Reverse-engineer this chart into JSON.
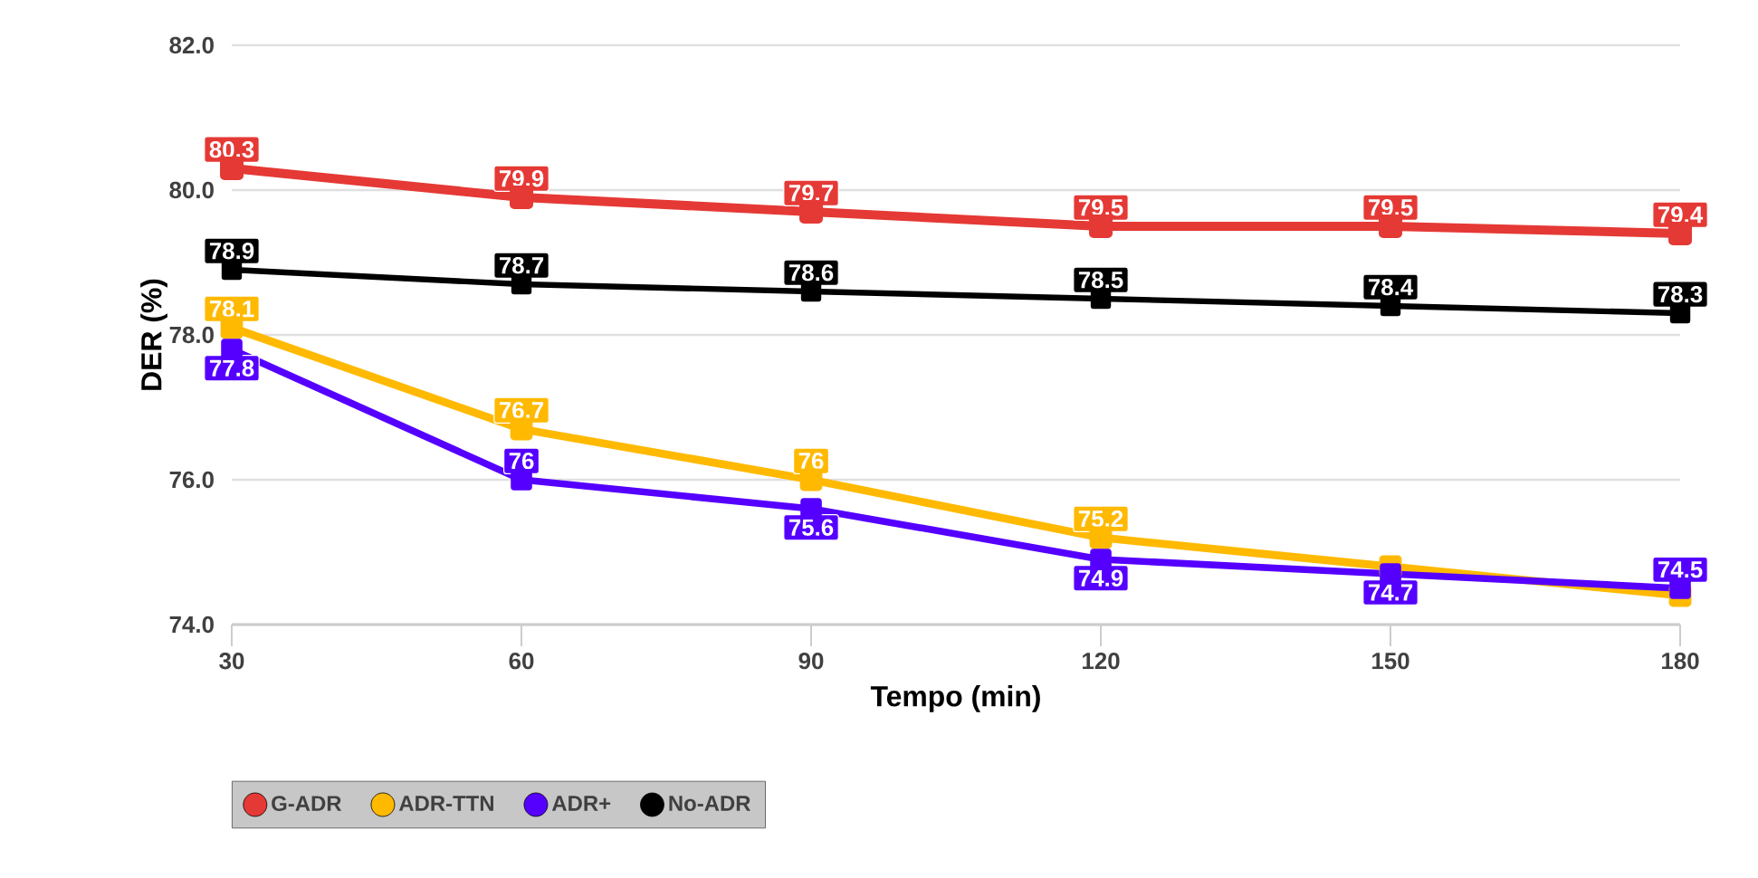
{
  "chart_data": {
    "type": "line",
    "xlabel": "Tempo (min)",
    "ylabel": "DER (%)",
    "x": [
      30,
      60,
      90,
      120,
      150,
      180
    ],
    "xlim": [
      30,
      180
    ],
    "xticks": [
      30,
      60,
      90,
      120,
      150,
      180
    ],
    "ylim": [
      74,
      82
    ],
    "yticks": [
      {
        "value": 74,
        "label": "74.0"
      },
      {
        "value": 76,
        "label": "76.0"
      },
      {
        "value": 78,
        "label": "78.0"
      },
      {
        "value": 80,
        "label": "80.0"
      },
      {
        "value": 82,
        "label": "82.0"
      }
    ],
    "grid": "y",
    "legend": "bottom",
    "marker": "square",
    "line_style": "solid",
    "series": [
      {
        "name": "G-ADR",
        "color": "#e53935",
        "values": [
          80.3,
          79.9,
          79.7,
          79.5,
          79.5,
          79.4
        ],
        "value_labels": [
          "80.3",
          "79.9",
          "79.7",
          "79.5",
          "79.5",
          "79.4"
        ]
      },
      {
        "name": "ADR-TTN",
        "color": "#ffb900",
        "values": [
          78.1,
          76.7,
          76,
          75.2,
          74.8,
          74.4
        ],
        "value_labels": [
          "78.1",
          "76.7",
          "76",
          "75.2",
          null,
          null
        ]
      },
      {
        "name": "ADR+",
        "color": "#5500ff",
        "values": [
          77.8,
          76,
          75.6,
          74.9,
          74.7,
          74.5
        ],
        "value_labels": [
          "77.8",
          "76",
          "75.6",
          "74.9",
          "74.7",
          "74.5"
        ]
      },
      {
        "name": "No-ADR",
        "color": "#000000",
        "values": [
          78.9,
          78.7,
          78.6,
          78.5,
          78.4,
          78.3
        ],
        "value_labels": [
          "78.9",
          "78.7",
          "78.6",
          "78.5",
          "78.4",
          "78.3"
        ]
      }
    ]
  }
}
